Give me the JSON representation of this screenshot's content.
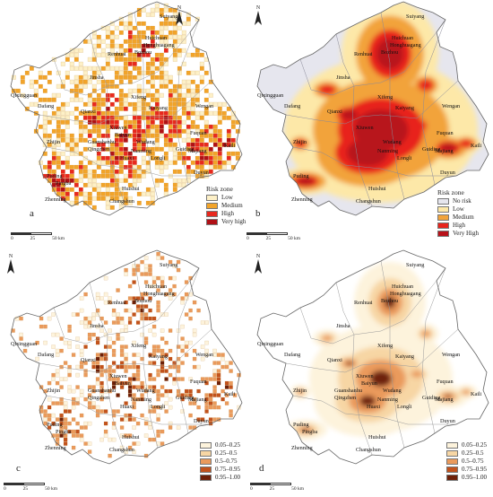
{
  "north_label": "N",
  "scale": {
    "ticks": [
      "0",
      "25",
      "50 km"
    ]
  },
  "places": {
    "Renhuai": "Renhuai",
    "Suiyang": "Suiyang",
    "Huichuan": "Huichuan",
    "Honghuagang": "Honghuagang",
    "Bozhou": "Bozhou",
    "Jinsha": "Jinsha",
    "Qixingguan": "Qixingguan",
    "Dafang": "Dafang",
    "Qianxi": "Qianxi",
    "Xifeng": "Xifeng",
    "Kaiyang": "Kaiyang",
    "Wengan": "Wengan",
    "Zhijin": "Zhijin",
    "Xiuwen": "Xiuwen",
    "Baiyun": "Baiyun",
    "Guanshanhu": "Guanshanhu",
    "Qingzhen": "Qingzhen",
    "Wudang": "Wudang",
    "Nanming": "Nanming",
    "Longli": "Longli",
    "Huaxi": "Huaxi",
    "Guiding": "Guiding",
    "Fuquan": "Fuquan",
    "Majiang": "Majiang",
    "Kaili": "Kaili",
    "Duyun": "Duyun",
    "Puding": "Puding",
    "Pingba": "Pingba",
    "Zhenning": "Zhenning",
    "Huishui": "Huishui",
    "Changshun": "Changshun"
  },
  "panels": {
    "a": {
      "label": "a",
      "legend_title": "Risk zone",
      "legend": [
        {
          "label": "Low",
          "color": "#fdf0c7"
        },
        {
          "label": "Medium",
          "color": "#f2a42a"
        },
        {
          "label": "High",
          "color": "#e8281e"
        },
        {
          "label": "Very high",
          "color": "#b01016"
        }
      ]
    },
    "b": {
      "label": "b",
      "legend_title": "Risk zone",
      "legend": [
        {
          "label": "No risk",
          "color": "#e6e6ee"
        },
        {
          "label": "Low",
          "color": "#fde8a8"
        },
        {
          "label": "Medium",
          "color": "#f2a33a"
        },
        {
          "label": "High",
          "color": "#e8231c"
        },
        {
          "label": "Very High",
          "color": "#b8121a"
        }
      ]
    },
    "c": {
      "label": "c",
      "legend_title": "",
      "legend": [
        {
          "label": "0.05–0.25",
          "color": "#fdf3dc"
        },
        {
          "label": "0.25–0.5",
          "color": "#f7d6a4"
        },
        {
          "label": "0.5–0.75",
          "color": "#ea9a5c"
        },
        {
          "label": "0.75–0.95",
          "color": "#c2521c"
        },
        {
          "label": "0.95–1.00",
          "color": "#6e2008"
        }
      ]
    },
    "d": {
      "label": "d",
      "legend_title": "",
      "legend": [
        {
          "label": "0.05–0.25",
          "color": "#fdf3dc"
        },
        {
          "label": "0.25–0.5",
          "color": "#f7d6a4"
        },
        {
          "label": "0.5–0.75",
          "color": "#ea9a5c"
        },
        {
          "label": "0.75–0.95",
          "color": "#c2521c"
        },
        {
          "label": "0.95–1.00",
          "color": "#6e2008"
        }
      ]
    }
  }
}
